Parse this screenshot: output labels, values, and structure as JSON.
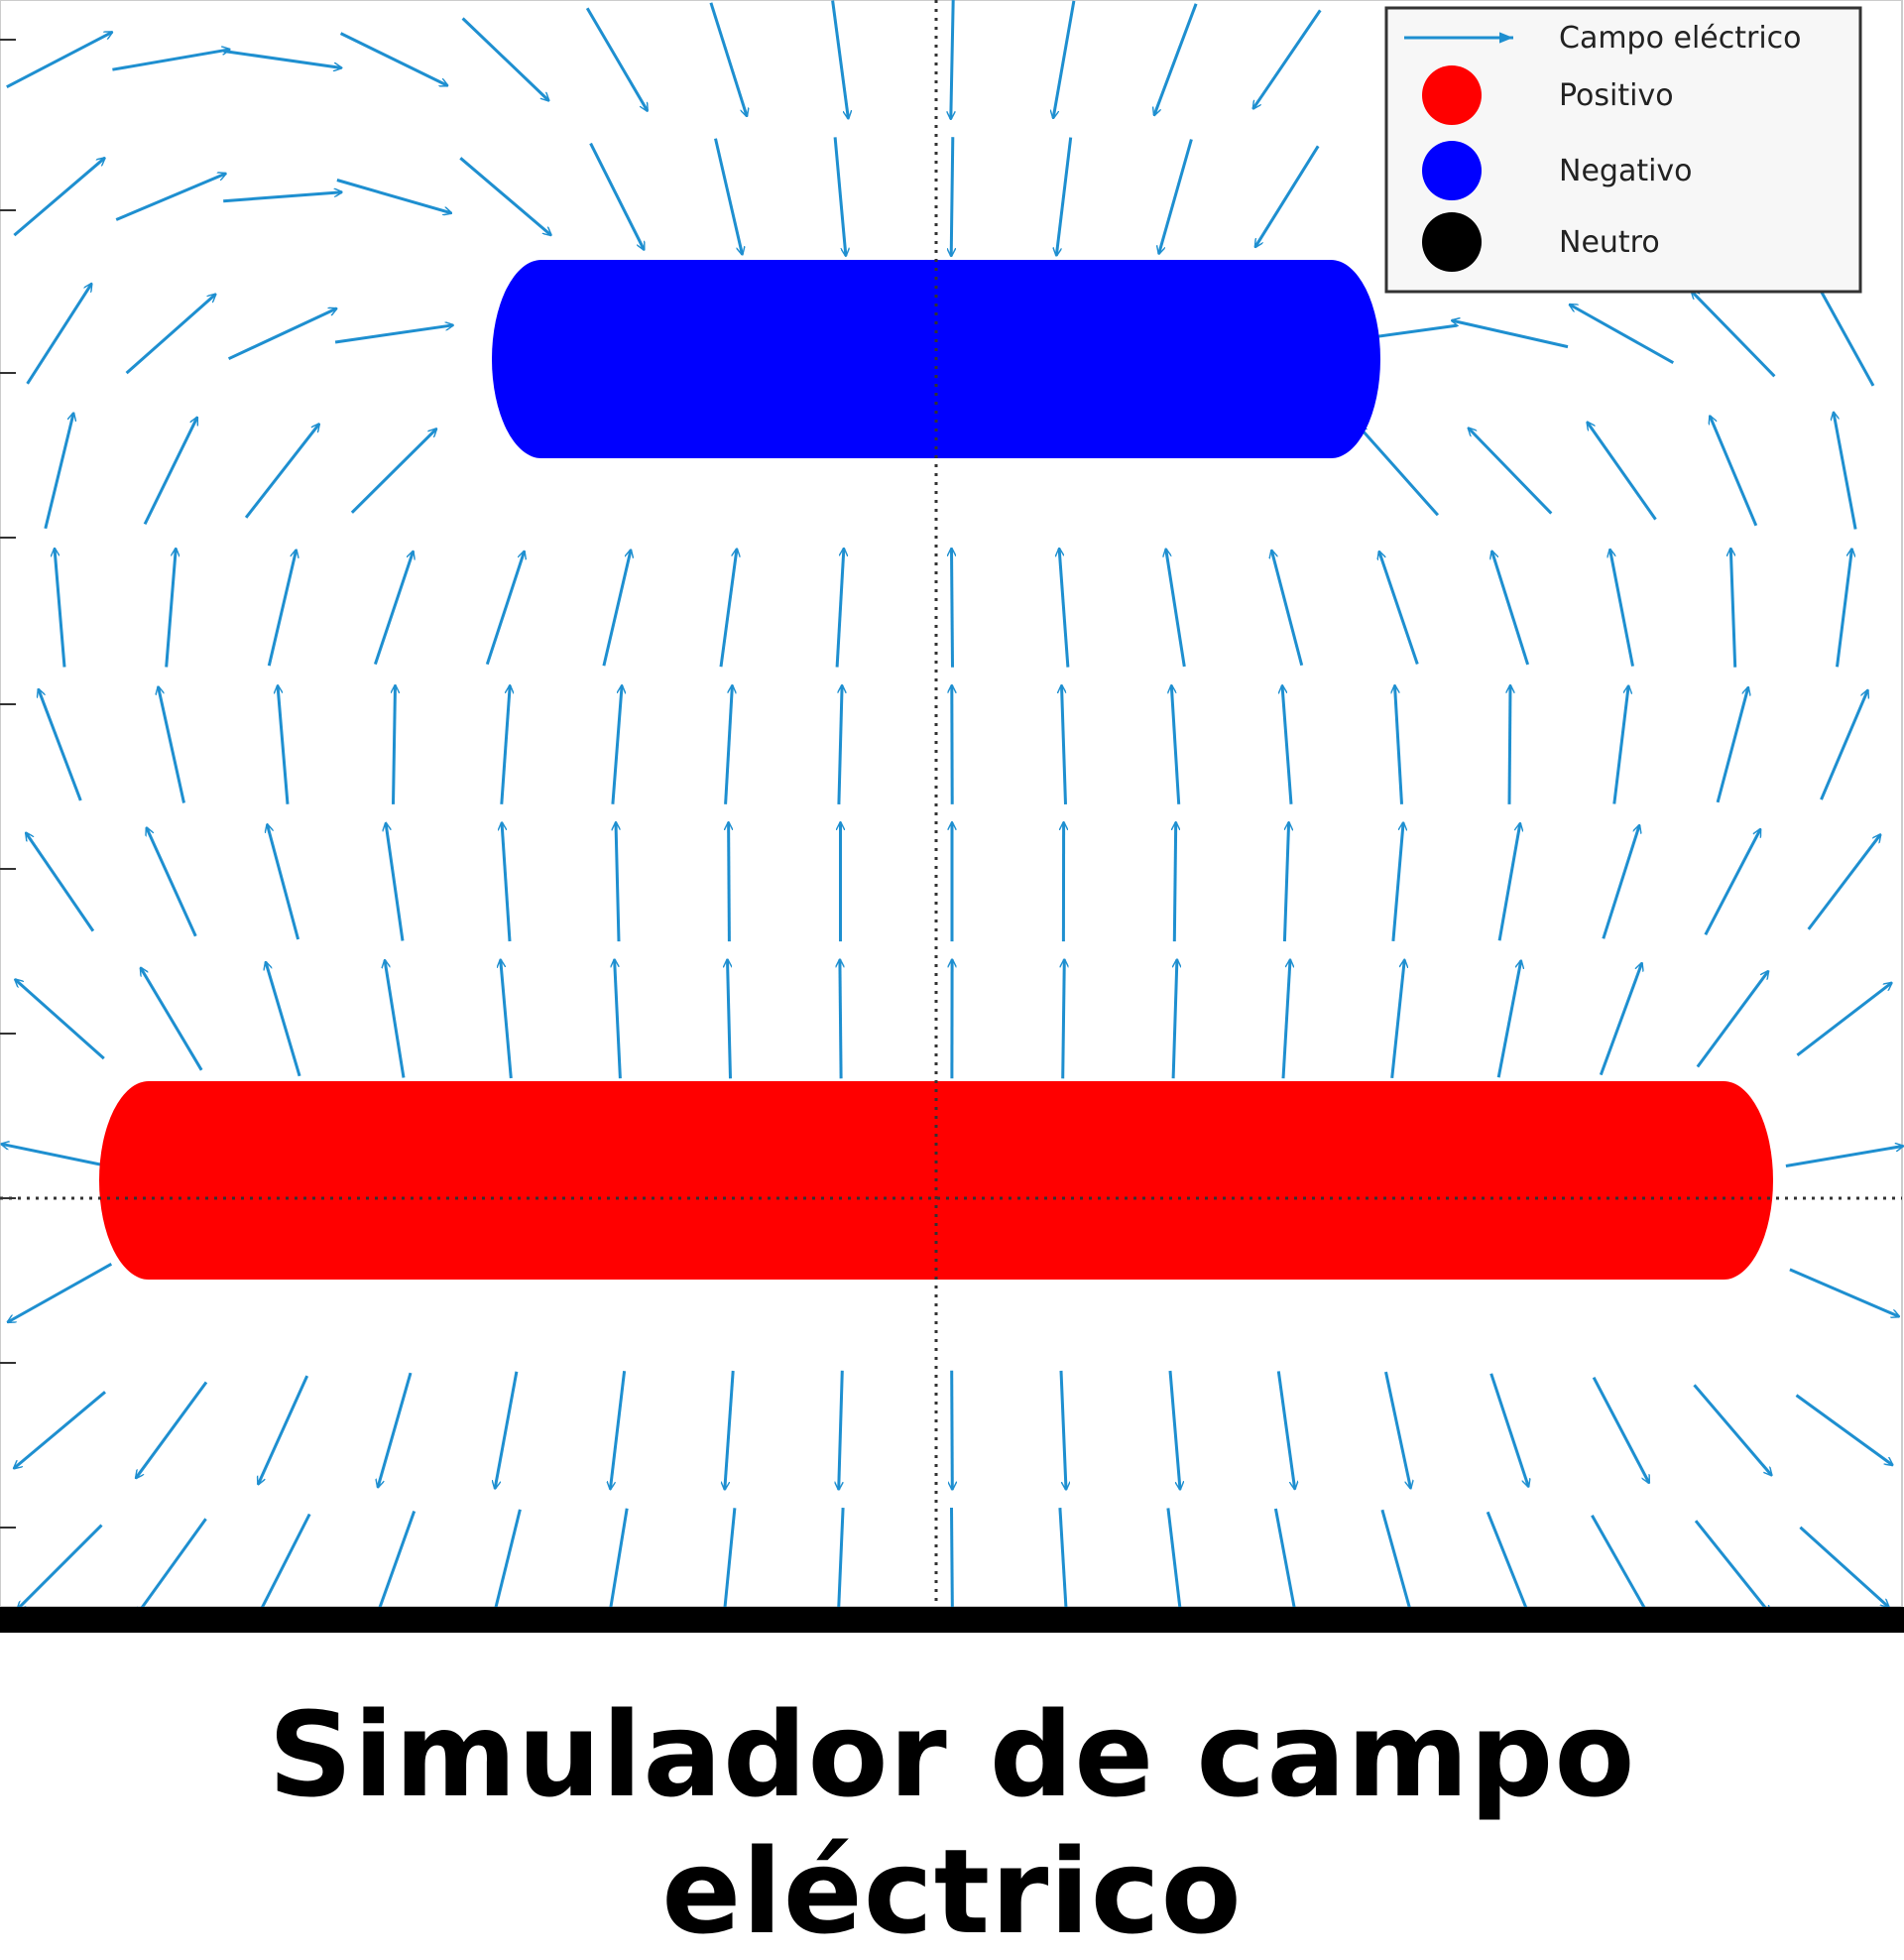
{
  "caption": "Simulador de campo eléctrico",
  "legend": {
    "field_label": "Campo eléctrico",
    "items": [
      {
        "label": "Positivo",
        "color": "#ff0000"
      },
      {
        "label": "Negativo",
        "color": "#0000ff"
      },
      {
        "label": "Neutro",
        "color": "#000000"
      }
    ]
  },
  "colors": {
    "field_arrow": "#1e8fd0",
    "positive": "#ff0000",
    "negative": "#0000ff",
    "axis_line": "#333333",
    "legend_border": "#333333",
    "legend_bg": "#f7f7f7",
    "caption_bar": "#000000"
  },
  "plates": [
    {
      "charge": "negative",
      "color": "#0000ff"
    },
    {
      "charge": "positive",
      "color": "#ff0000"
    }
  ]
}
